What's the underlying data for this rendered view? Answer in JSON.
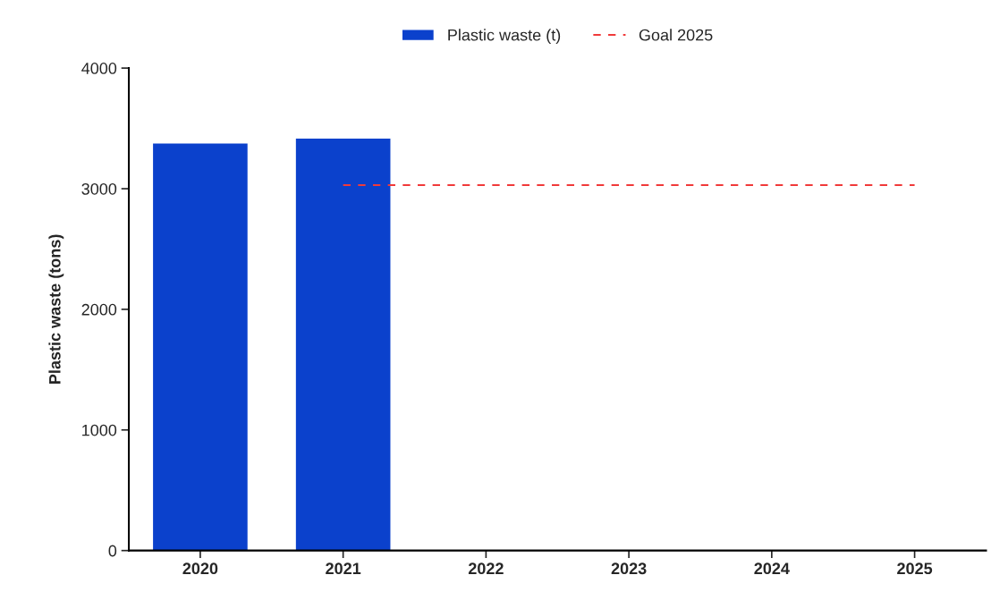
{
  "chart_data": {
    "type": "bar",
    "ylabel": "Plastic waste (tons)",
    "categories": [
      "2020",
      "2021",
      "2022",
      "2023",
      "2024",
      "2025"
    ],
    "series": [
      {
        "name": "Plastic waste (t)",
        "type": "bar",
        "color": "#0b41cc",
        "values": [
          3380,
          3420,
          null,
          null,
          null,
          null
        ]
      },
      {
        "name": "Goal 2025",
        "type": "line",
        "color": "#f03a3a",
        "line_style": "dashed",
        "values": [
          null,
          3030,
          3030,
          3030,
          3030,
          3030
        ]
      }
    ],
    "ylim": [
      0,
      4000
    ],
    "yticks": [
      0,
      1000,
      2000,
      3000,
      4000
    ],
    "grid": false,
    "legend": "top"
  }
}
